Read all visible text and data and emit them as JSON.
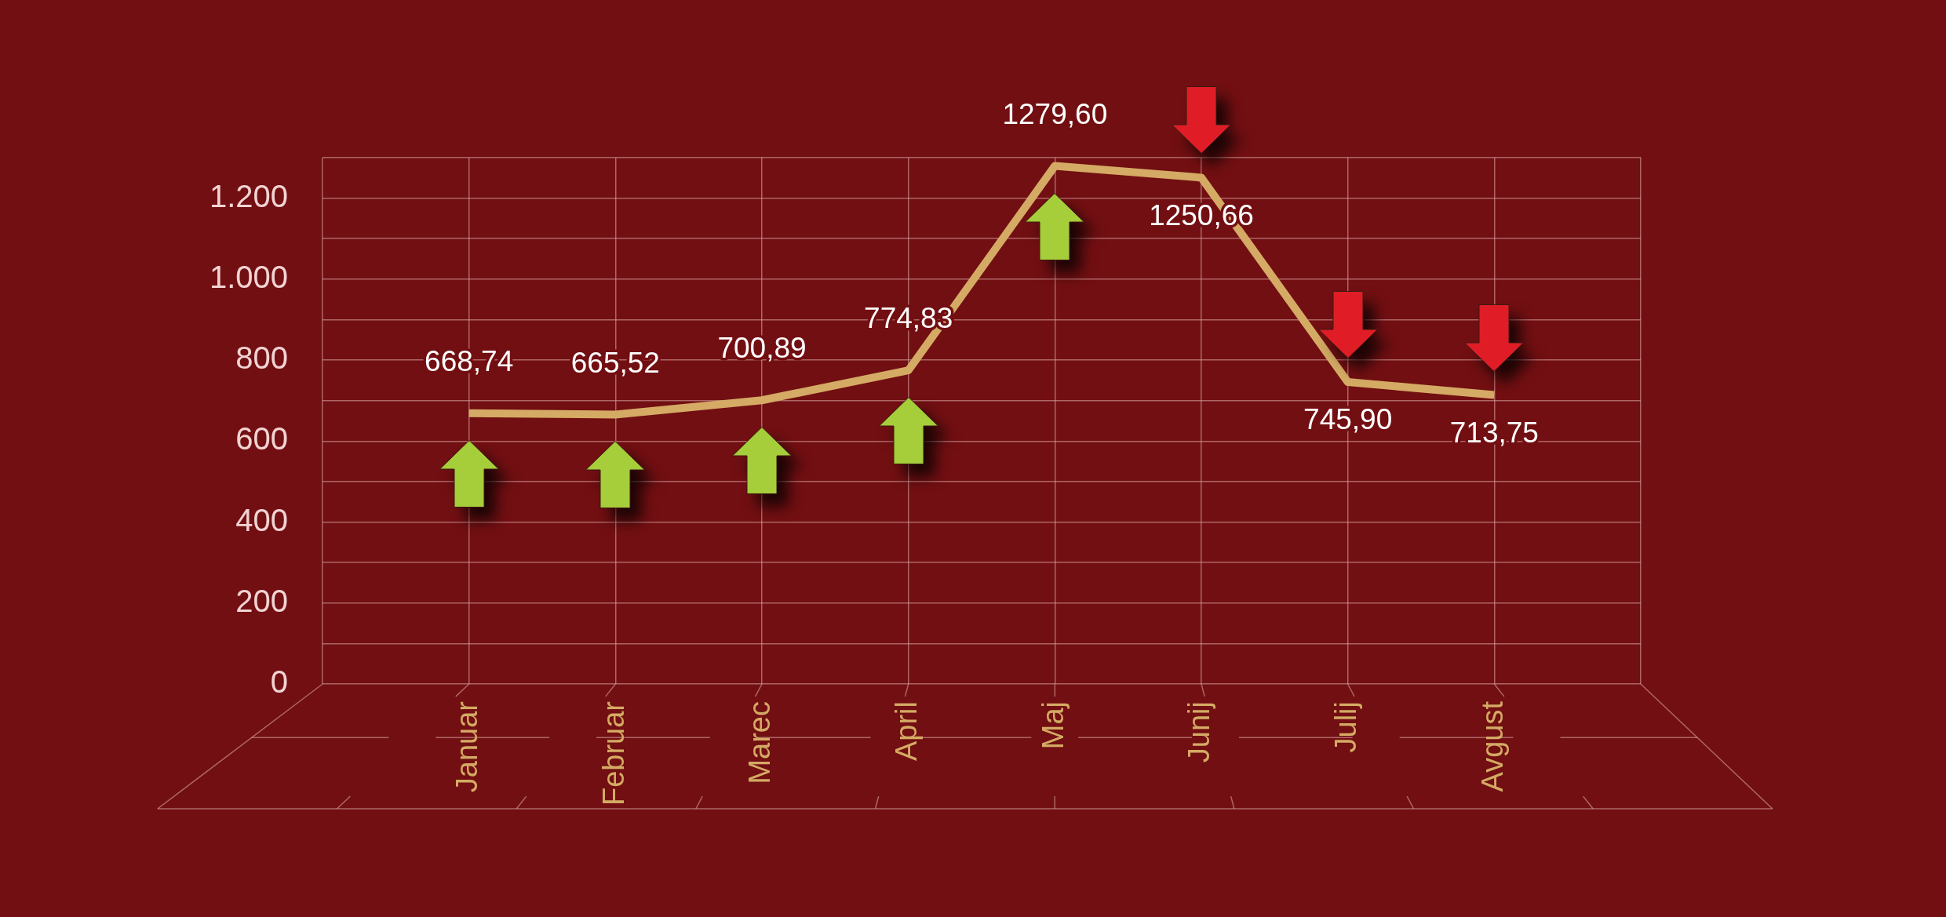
{
  "chart_data": {
    "type": "line",
    "categories": [
      "Januar",
      "Februar",
      "Marec",
      "April",
      "Maj",
      "Junij",
      "Julij",
      "Avgust"
    ],
    "values": [
      668.74,
      665.52,
      700.89,
      774.83,
      1279.6,
      1250.66,
      745.9,
      713.75
    ],
    "value_labels": [
      "668,74",
      "665,52",
      "700,89",
      "774,83",
      "1279,60",
      "1250,66",
      "745,90",
      "713,75"
    ],
    "color": "#d4aa64",
    "ylim": [
      0,
      1300
    ],
    "yticks": [
      0,
      {
        "value": 100,
        "label": null
      },
      200,
      {
        "value": 300,
        "label": null
      },
      400,
      {
        "value": 500,
        "label": null
      },
      600,
      {
        "value": 700,
        "label": null
      },
      800,
      {
        "value": 900,
        "label": null
      },
      {
        "value": 1000,
        "label": "1.000"
      },
      {
        "value": 1100,
        "label": null
      },
      {
        "value": 1200,
        "label": "1.200"
      },
      {
        "value": 1300,
        "label": null
      }
    ],
    "grid": true
  }
}
